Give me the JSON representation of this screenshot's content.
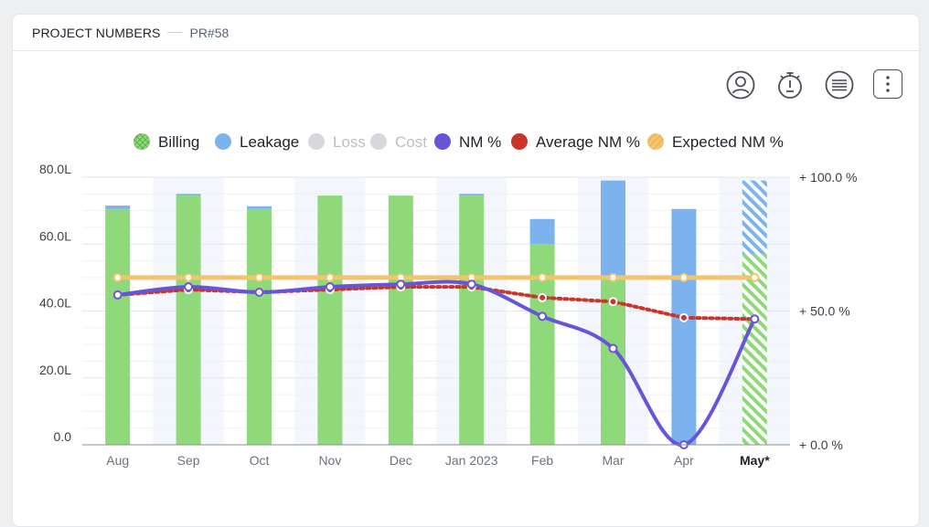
{
  "header": {
    "title": "PROJECT NUMBERS",
    "subtitle": "PR#58"
  },
  "toolbar": [
    {
      "icon": "user-circle-icon"
    },
    {
      "icon": "stopwatch-icon"
    },
    {
      "icon": "list-lines-icon"
    },
    {
      "icon": "more-vertical-icon"
    }
  ],
  "chart_data": {
    "type": "bar",
    "categories": [
      "Aug",
      "Sep",
      "Oct",
      "Nov",
      "Dec",
      "Jan 2023",
      "Feb",
      "Mar",
      "Apr",
      "May*"
    ],
    "highlighted_category": "May*",
    "forecast_category": "May*",
    "y_left": {
      "ylim": [
        0,
        80
      ],
      "ticks": [
        "0.0",
        "20.0L",
        "40.0L",
        "60.0L",
        "80.0L"
      ],
      "tick_values": [
        0,
        20,
        40,
        60,
        80
      ]
    },
    "y_right": {
      "ylim": [
        0,
        100
      ],
      "ticks": [
        "+ 0.0 %",
        "+ 50.0 %",
        "+ 100.0 %"
      ],
      "tick_values": [
        0,
        50,
        100
      ]
    },
    "legend": [
      {
        "name": "Billing",
        "color": "#8fd97a",
        "pattern": "cross",
        "active": true
      },
      {
        "name": "Leakage",
        "color": "#7cb3ef",
        "pattern": "solid",
        "active": true
      },
      {
        "name": "Loss",
        "color": "#d6d8db",
        "pattern": "solid",
        "active": false
      },
      {
        "name": "Cost",
        "color": "#d6d8db",
        "pattern": "solid",
        "active": false
      },
      {
        "name": "NM %",
        "color": "#6655d8",
        "pattern": "solid",
        "active": true
      },
      {
        "name": "Average NM %",
        "color": "#c9352b",
        "pattern": "solid",
        "active": true
      },
      {
        "name": "Expected NM %",
        "color": "#f4c46d",
        "pattern": "hatch",
        "active": true
      }
    ],
    "series": [
      {
        "name": "Billing",
        "axis": "left",
        "kind": "stacked-bar",
        "color": "#8fd97a",
        "values": [
          70.5,
          74.5,
          70.5,
          74.5,
          74.5,
          74.5,
          60,
          50.5,
          0,
          57
        ]
      },
      {
        "name": "Leakage",
        "axis": "left",
        "kind": "stacked-bar",
        "color": "#7cb3ef",
        "values": [
          1,
          0.5,
          0.8,
          0,
          0,
          0.5,
          7.5,
          28.5,
          70.5,
          22
        ]
      },
      {
        "name": "NM %",
        "axis": "right",
        "kind": "line",
        "color": "#6655d8",
        "values": [
          56,
          59,
          57,
          59,
          60,
          60,
          48,
          36,
          0,
          47
        ]
      },
      {
        "name": "Average NM %",
        "axis": "right",
        "kind": "dotted-line",
        "color": "#c9352b",
        "values": [
          56,
          58,
          57,
          58,
          59,
          59,
          55,
          53.5,
          47.5,
          47
        ]
      },
      {
        "name": "Expected NM %",
        "axis": "right",
        "kind": "line",
        "color": "#f4c46d",
        "values": [
          62.5,
          62.5,
          62.5,
          62.5,
          62.5,
          62.5,
          62.5,
          62.5,
          62.5,
          62.5
        ]
      }
    ],
    "grid": true
  }
}
